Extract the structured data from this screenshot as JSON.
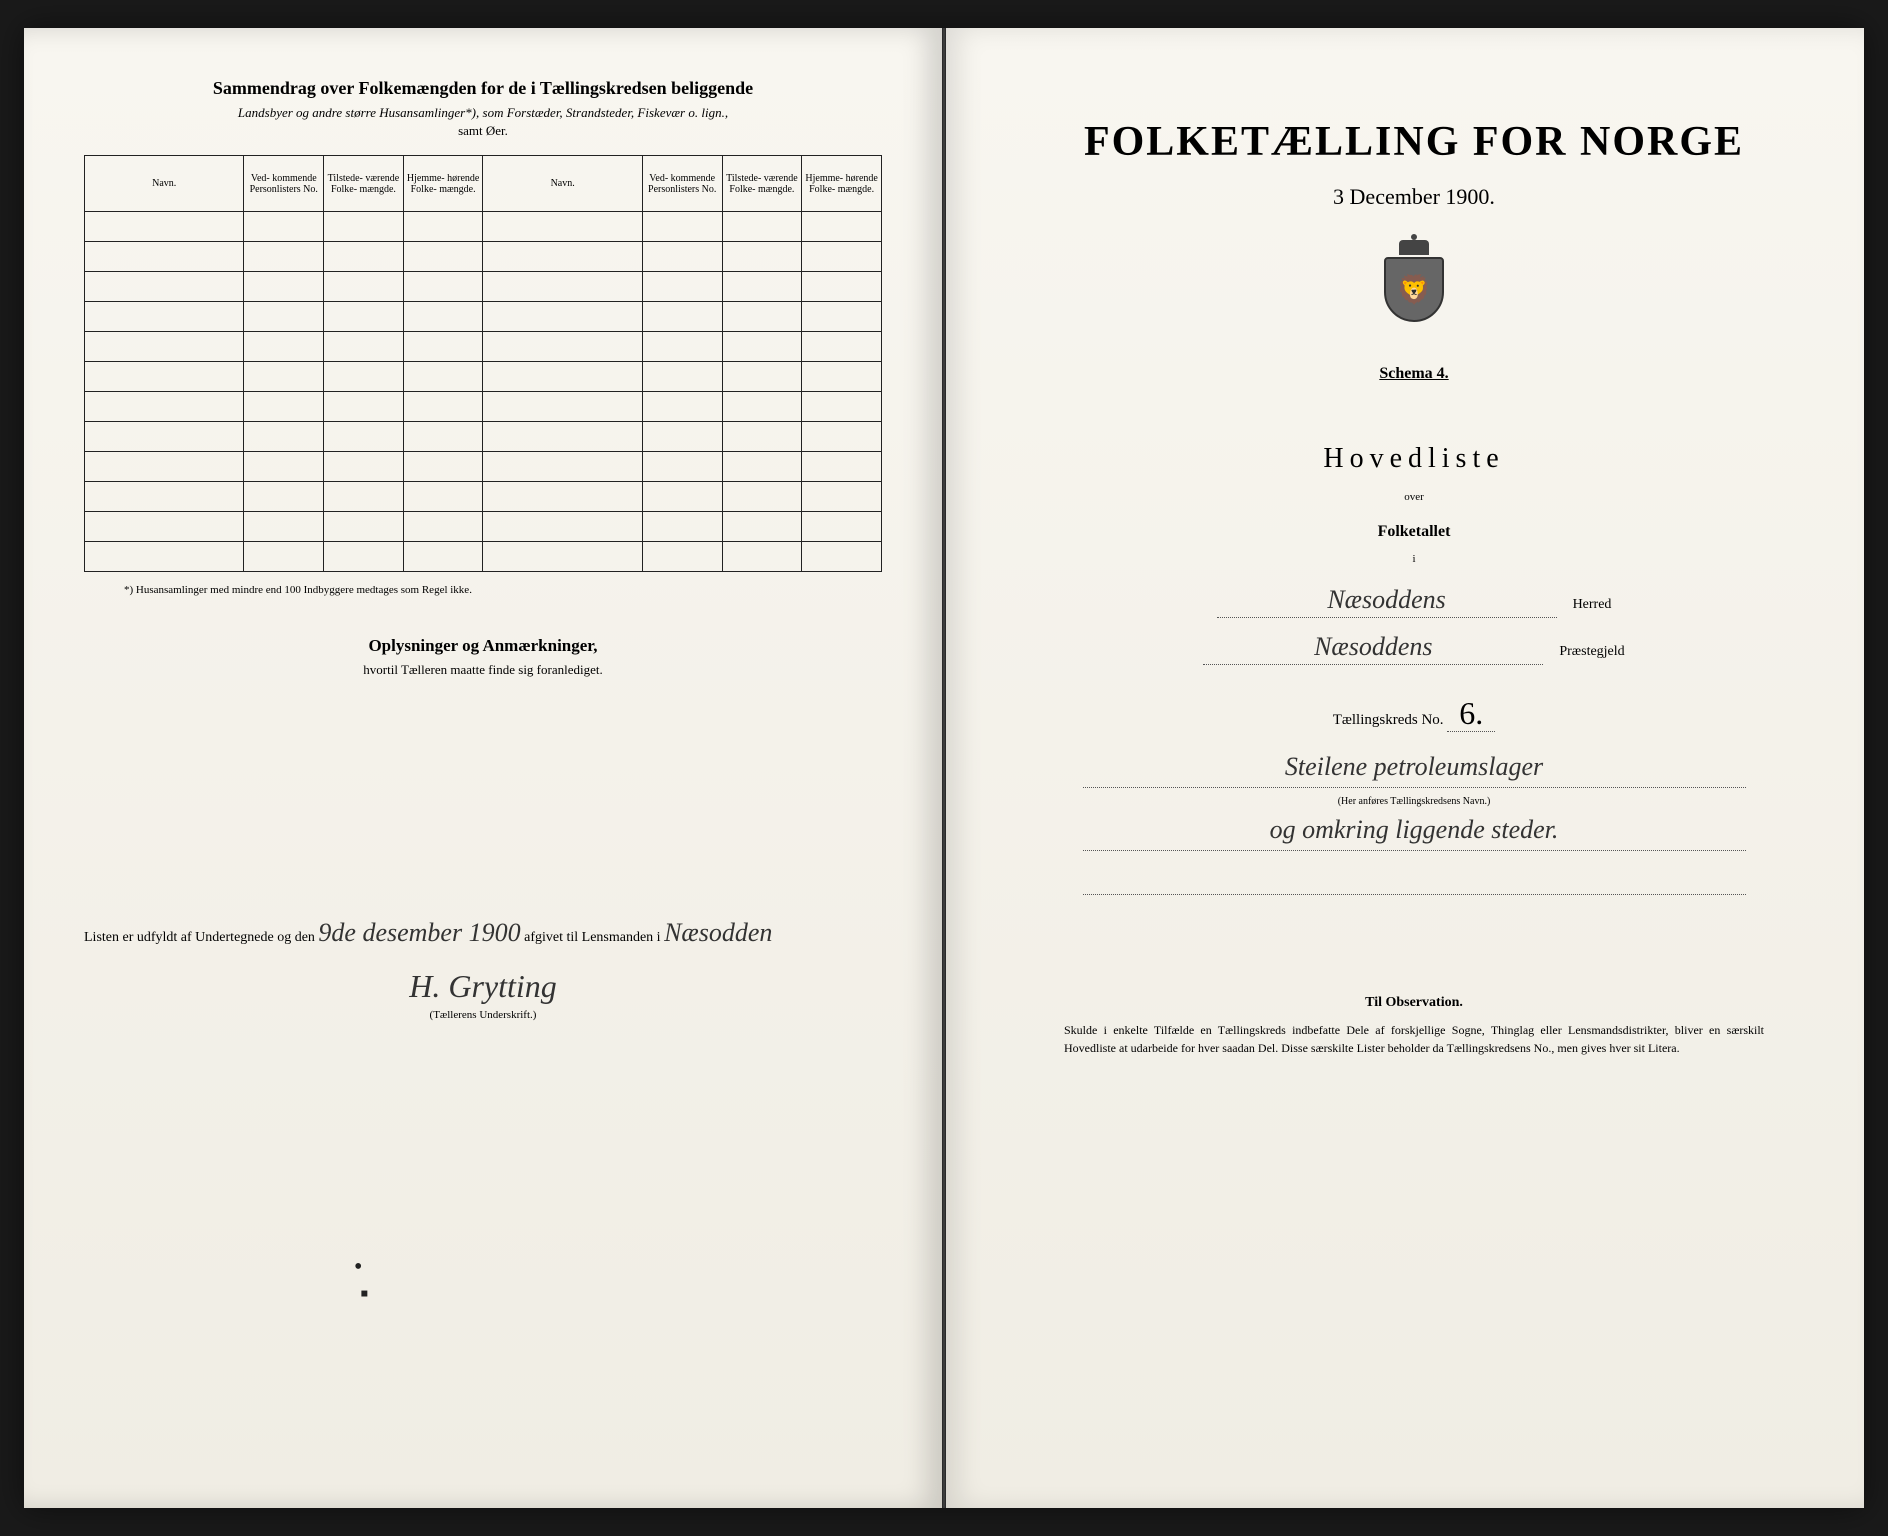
{
  "left": {
    "title": "Sammendrag over Folkemængden for de i Tællingskredsen beliggende",
    "subtitle": "Landsbyer og andre større Husansamlinger*), som Forstæder, Strandsteder, Fiskevær o. lign.,",
    "subtitle2": "samt Øer.",
    "columns": {
      "navn": "Navn.",
      "vedk": "Ved-\nkommende\nPersonlisters\nNo.",
      "tilst": "Tilstede-\nværende\nFolke-\nmængde.",
      "hjem": "Hjemme-\nhørende\nFolke-\nmængde."
    },
    "footnote": "*) Husansamlinger med mindre end 100 Indbyggere medtages som Regel ikke.",
    "oplysninger_title": "Oplysninger og Anmærkninger,",
    "oplysninger_sub": "hvortil Tælleren maatte finde sig foranlediget.",
    "signature_prefix": "Listen er udfyldt af Undertegnede og den",
    "signature_date": "9de desember 1900",
    "signature_mid": "afgivet til Lensmanden i",
    "signature_place": "Næsodden",
    "signature_name": "H. Grytting",
    "teller_label": "(Tællerens Underskrift.)"
  },
  "right": {
    "main_title": "FOLKETÆLLING FOR NORGE",
    "date": "3 December 1900.",
    "schema": "Schema 4.",
    "hovedliste": "Hovedliste",
    "over": "over",
    "folketallet": "Folketallet",
    "i": "i",
    "herred_value": "Næsoddens",
    "herred_label": "Herred",
    "praeste_value": "Næsoddens",
    "praeste_label": "Præstegjeld",
    "kreds_label": "Tællingskreds No.",
    "kreds_num": "6.",
    "desc1": "Steilene petroleumslager",
    "desc_note": "(Her anføres Tællingskredsens Navn.)",
    "desc2": "og omkring liggende steder.",
    "obs_title": "Til Observation.",
    "obs_text": "Skulde i enkelte Tilfælde en Tællingskreds indbefatte Dele af forskjellige Sogne, Thinglag eller Lensmandsdistrikter, bliver en særskilt Hovedliste at udarbeide for hver saadan Del. Disse særskilte Lister beholder da Tællingskredsens No., men gives hver sit Litera."
  },
  "colors": {
    "paper": "#f5f3ed",
    "ink": "#222222",
    "handwriting": "#333333"
  }
}
